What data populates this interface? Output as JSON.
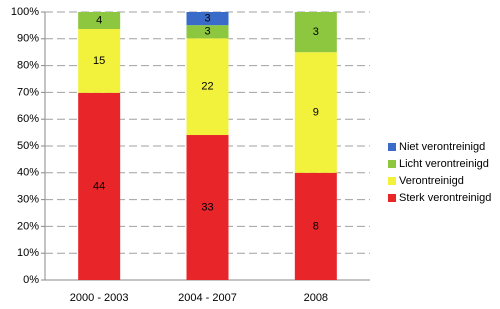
{
  "chart_data": {
    "type": "bar",
    "stacking": "percent",
    "categories": [
      "2000 - 2003",
      "2004 - 2007",
      "2008"
    ],
    "series": [
      {
        "name": "Sterk verontreinigd",
        "color": "#e8262a",
        "values": [
          44,
          33,
          8
        ]
      },
      {
        "name": "Verontreinigd",
        "color": "#f2f23c",
        "values": [
          15,
          22,
          9
        ]
      },
      {
        "name": "Licht verontreinigd",
        "color": "#8dc63f",
        "values": [
          4,
          3,
          3
        ]
      },
      {
        "name": "Niet verontreinigd",
        "color": "#3a6bc8",
        "values": [
          null,
          3,
          null
        ]
      }
    ],
    "ylim": [
      0,
      100
    ],
    "yticks": [
      {
        "value": 0,
        "label": "0%"
      },
      {
        "value": 10,
        "label": "10%"
      },
      {
        "value": 20,
        "label": "20%"
      },
      {
        "value": 30,
        "label": "30%"
      },
      {
        "value": 40,
        "label": "40%"
      },
      {
        "value": 50,
        "label": "50%"
      },
      {
        "value": 60,
        "label": "60%"
      },
      {
        "value": 70,
        "label": "70%"
      },
      {
        "value": 80,
        "label": "80%"
      },
      {
        "value": 90,
        "label": "90%"
      },
      {
        "value": 100,
        "label": "100%"
      }
    ],
    "grid": true,
    "legend": "right"
  }
}
